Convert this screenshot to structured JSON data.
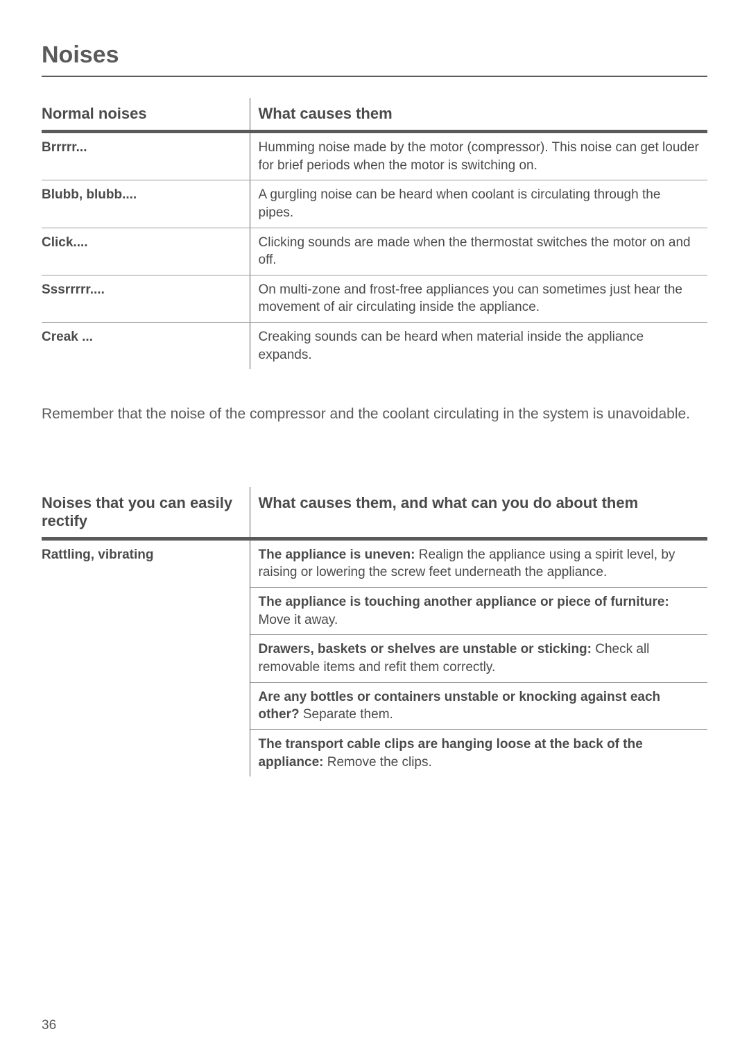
{
  "page_title": "Noises",
  "normal_table": {
    "header_col1": "Normal noises",
    "header_col2": "What causes them",
    "rows": [
      {
        "noise": "Brrrrr...",
        "cause": "Humming noise made by the motor (compressor). This noise can get louder for brief periods when the motor is switching on."
      },
      {
        "noise": "Blubb, blubb....",
        "cause": "A gurgling noise can be heard when coolant is circulating through the pipes."
      },
      {
        "noise": "Click....",
        "cause": "Clicking sounds are made when the thermostat switches the motor on and off."
      },
      {
        "noise": "Sssrrrrr....",
        "cause": "On multi-zone and frost-free appliances you can sometimes just hear the movement of air circulating inside the appliance."
      },
      {
        "noise": "Creak ...",
        "cause": "Creaking sounds can be heard when material inside the appliance expands."
      }
    ]
  },
  "note": "Remember that the noise of the compressor and the coolant circulating in the system is unavoidable.",
  "rectify_table": {
    "header_col1": "Noises that you can easily rectify",
    "header_col2": "What causes them, and what can you do about them",
    "row_noise": "Rattling, vibrating",
    "causes": [
      {
        "bold": "The appliance is uneven:",
        "rest": " Realign the appliance using a spirit level,  by raising or lowering the screw feet underneath the appliance."
      },
      {
        "bold": "The appliance is touching another appliance or piece of furniture:",
        "rest": " Move it away."
      },
      {
        "bold": "Drawers, baskets or shelves are unstable or sticking:",
        "rest": " Check all removable items and refit them correctly."
      },
      {
        "bold": "Are any bottles or containers unstable or knocking against each other?",
        "rest": " Separate them."
      },
      {
        "bold": "The transport cable clips are hanging loose at the back of the appliance:",
        "rest": " Remove the clips."
      }
    ]
  },
  "page_number": "36"
}
